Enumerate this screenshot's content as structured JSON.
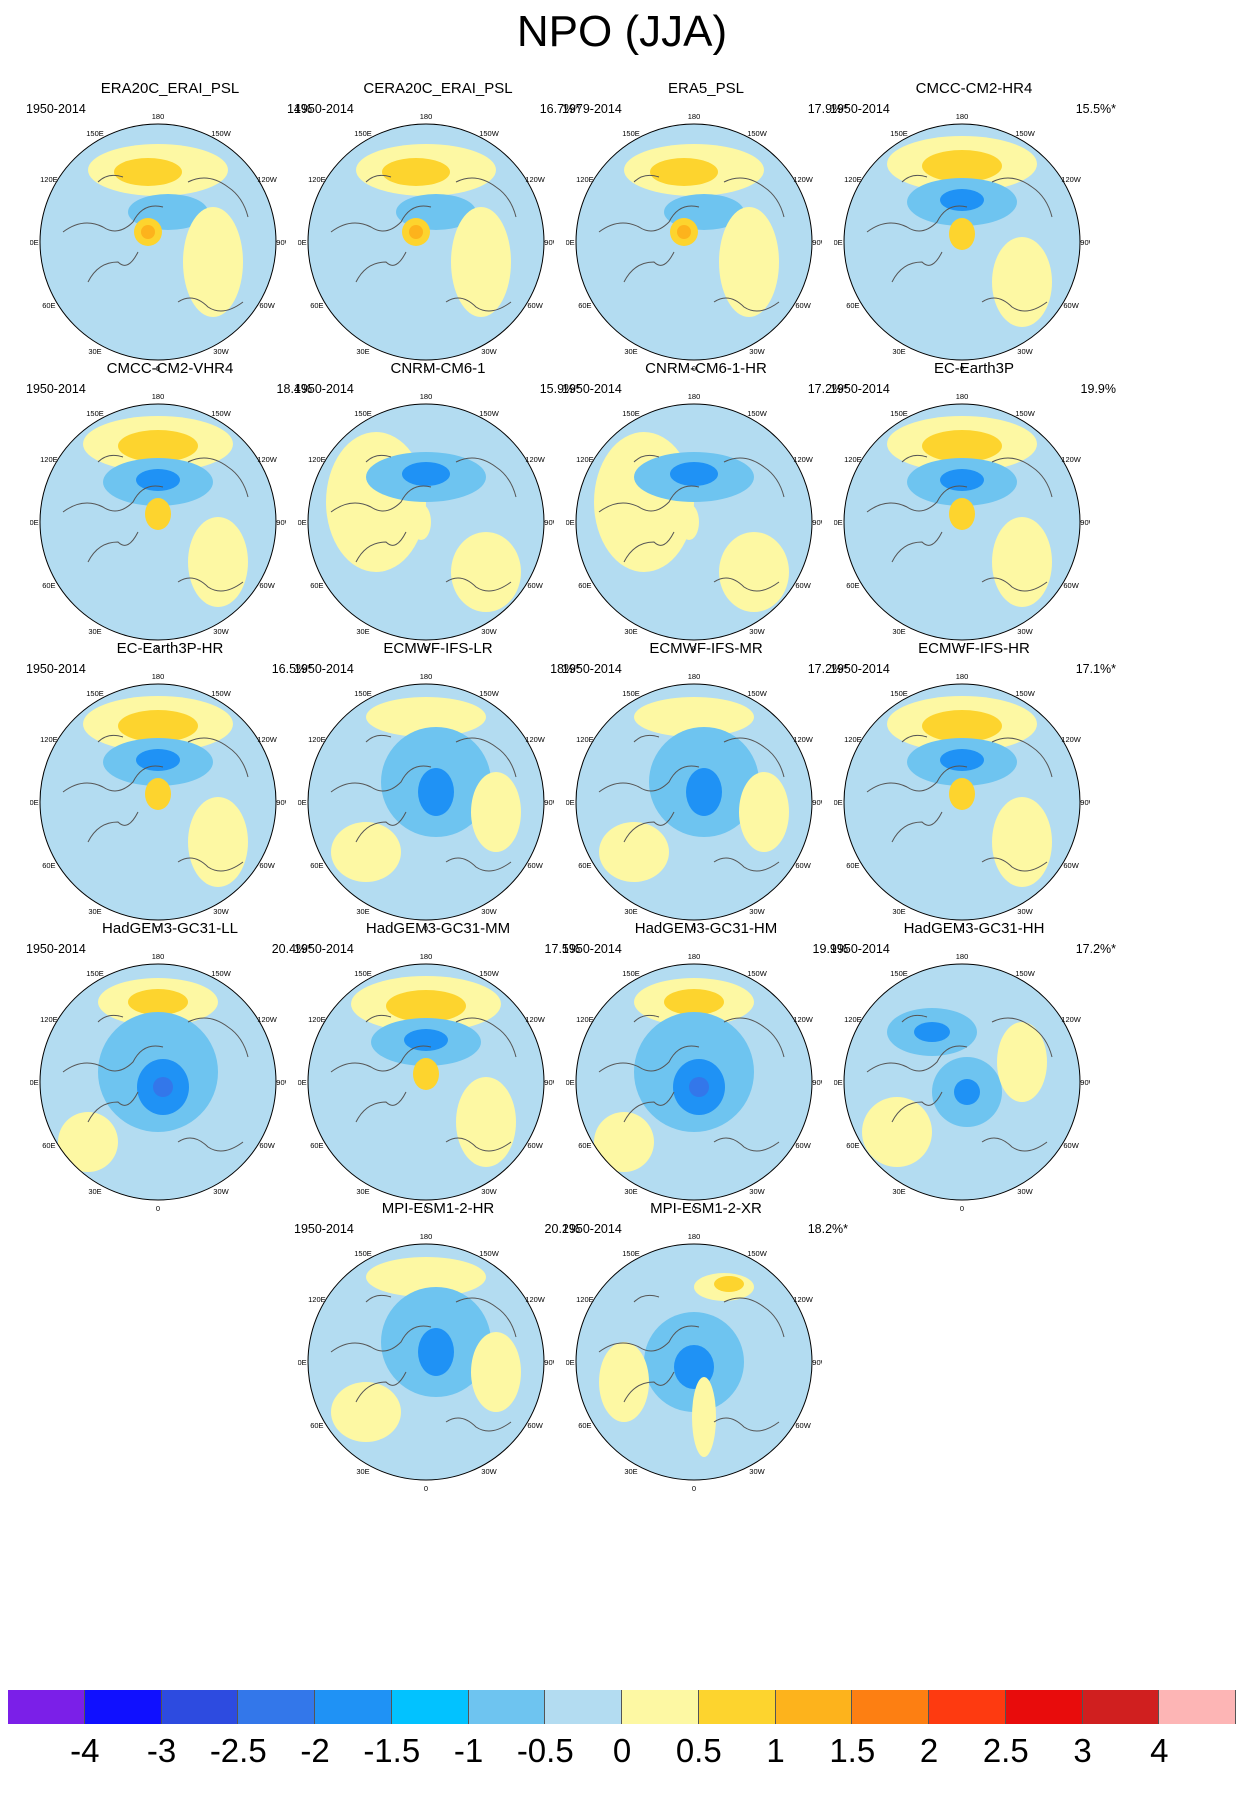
{
  "figure": {
    "title": "NPO (JJA)"
  },
  "panels": [
    {
      "name": "ERA20C_ERAI_PSL",
      "period": "1950-2014",
      "percent": "14%",
      "pattern": "ridge-pole-n"
    },
    {
      "name": "CERA20C_ERAI_PSL",
      "period": "1950-2014",
      "percent": "16.7%*",
      "pattern": "ridge-pole-n"
    },
    {
      "name": "ERA5_PSL",
      "period": "1979-2014",
      "percent": "17.9%*",
      "pattern": "ridge-pole-n"
    },
    {
      "name": "CMCC-CM2-HR4",
      "period": "1950-2014",
      "percent": "15.5%*",
      "pattern": "ridge-trough-pole"
    },
    {
      "name": "CMCC-CM2-VHR4",
      "period": "1950-2014",
      "percent": "18.4%",
      "pattern": "ridge-trough-pole"
    },
    {
      "name": "CNRM-CM6-1",
      "period": "1950-2014",
      "percent": "15.9%*",
      "pattern": "trough"
    },
    {
      "name": "CNRM-CM6-1-HR",
      "period": "1950-2014",
      "percent": "17.2%*",
      "pattern": "trough"
    },
    {
      "name": "EC-Earth3P",
      "period": "1950-2014",
      "percent": "19.9%",
      "pattern": "ridge-trough-pole"
    },
    {
      "name": "EC-Earth3P-HR",
      "period": "1950-2014",
      "percent": "16.5%*",
      "pattern": "ridge-trough-pole"
    },
    {
      "name": "ECMWF-IFS-LR",
      "period": "1950-2014",
      "percent": "18%*",
      "pattern": "trough-pole"
    },
    {
      "name": "ECMWF-IFS-MR",
      "period": "1950-2014",
      "percent": "17.2%*",
      "pattern": "trough-pole"
    },
    {
      "name": "ECMWF-IFS-HR",
      "period": "1950-2014",
      "percent": "17.1%*",
      "pattern": "ridge-trough-pole"
    },
    {
      "name": "HadGEM3-GC31-LL",
      "period": "1950-2014",
      "percent": "20.4%*",
      "pattern": "ridge-trough-center"
    },
    {
      "name": "HadGEM3-GC31-MM",
      "period": "1950-2014",
      "percent": "17.5%",
      "pattern": "ridge-trough-pole"
    },
    {
      "name": "HadGEM3-GC31-HM",
      "period": "1950-2014",
      "percent": "19.9%",
      "pattern": "ridge-trough-center"
    },
    {
      "name": "HadGEM3-GC31-HH",
      "period": "1950-2014",
      "percent": "17.2%*",
      "pattern": "trough-two"
    },
    {
      "name": "MPI-ESM1-2-HR",
      "period": "1950-2014",
      "percent": "20.2%",
      "pattern": "trough-pole"
    },
    {
      "name": "MPI-ESM1-2-XR",
      "period": "1950-2014",
      "percent": "18.2%*",
      "pattern": "trough-center"
    }
  ],
  "longitude_labels": [
    "180",
    "150W",
    "150E",
    "120W",
    "120E",
    "90W",
    "90E",
    "60W",
    "60E",
    "30W",
    "30E",
    "0"
  ],
  "colorbar": {
    "labels": [
      "-4",
      "-3",
      "-2.5",
      "-2",
      "-1.5",
      "-1",
      "-0.5",
      "0",
      "0.5",
      "1",
      "1.5",
      "2",
      "2.5",
      "3",
      "4"
    ],
    "colors": [
      "#7b1fe8",
      "#1010ff",
      "#2d4be0",
      "#3377ea",
      "#1f92f5",
      "#02c2ff",
      "#6ec4f0",
      "#b3dcf1",
      "#fdf8a3",
      "#fdd42e",
      "#fdb31c",
      "#fd7f12",
      "#fe3a10",
      "#e80c0c",
      "#d01f1f",
      "#fdb5b5"
    ]
  }
}
